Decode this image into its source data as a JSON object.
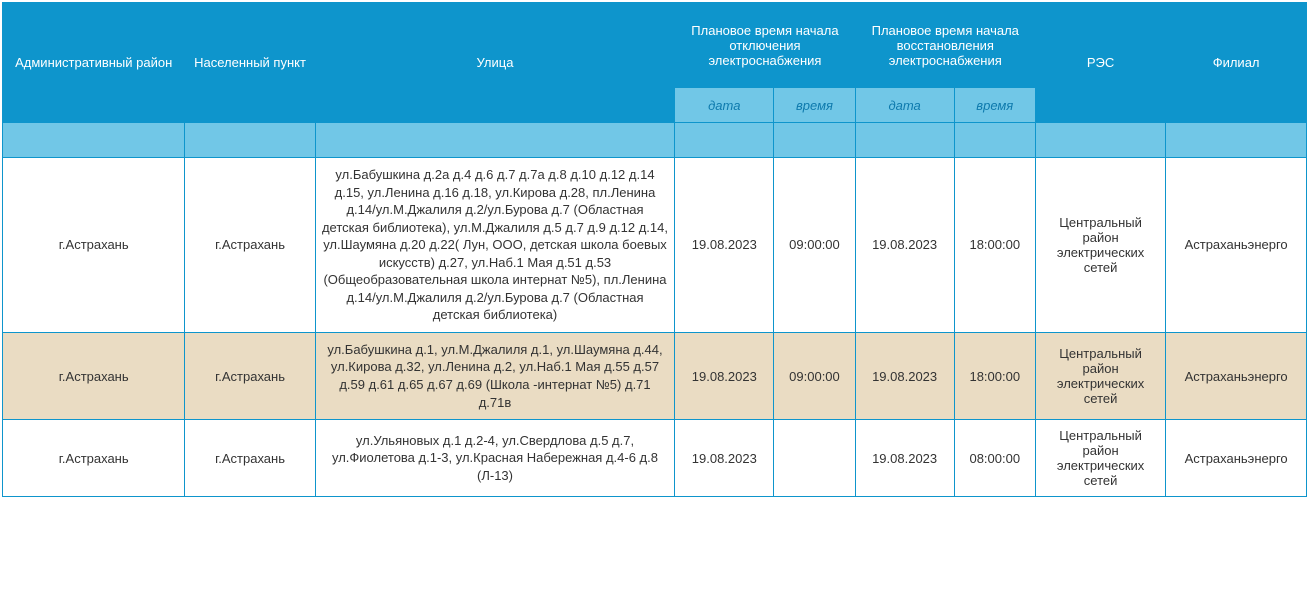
{
  "headers": {
    "district": "Административный район",
    "settlement": "Населенный пункт",
    "street": "Улица",
    "outage_start": "Плановое время начала отключения электроснабжения",
    "outage_end": "Плановое время начала восстановления электроснабжения",
    "res": "РЭС",
    "branch": "Филиал"
  },
  "subheaders": {
    "date": "дата",
    "time": "время"
  },
  "rows": [
    {
      "district": "г.Астрахань",
      "settlement": "г.Астрахань",
      "street": "ул.Бабушкина д.2а д.4 д.6 д.7 д.7а д.8 д.10 д.12 д.14 д.15, ул.Ленина д.16 д.18, ул.Кирова д.28, пл.Ленина д.14/ул.М.Джалиля д.2/ул.Бурова д.7 (Областная детская библиотека), ул.М.Джалиля д.5 д.7 д.9 д.12 д.14, ул.Шаумяна д.20 д.22( Лун, ООО, детская школа боевых искусств) д.27, ул.Наб.1 Мая д.51 д.53 (Общеобразовательная школа интернат №5), пл.Ленина д.14/ул.М.Джалиля д.2/ул.Бурова д.7 (Областная детская библиотека)",
      "start_date": "19.08.2023",
      "start_time": "09:00:00",
      "end_date": "19.08.2023",
      "end_time": "18:00:00",
      "res": "Центральный район электрических сетей",
      "branch": "Астраханьэнерго"
    },
    {
      "district": "г.Астрахань",
      "settlement": "г.Астрахань",
      "street": "ул.Бабушкина д.1, ул.М.Джалиля д.1, ул.Шаумяна д.44, ул.Кирова д.32, ул.Ленина д.2, ул.Наб.1 Мая д.55 д.57 д.59 д.61 д.65 д.67 д.69 (Школа -интернат №5) д.71 д.71в",
      "start_date": "19.08.2023",
      "start_time": "09:00:00",
      "end_date": "19.08.2023",
      "end_time": "18:00:00",
      "res": "Центральный район электрических сетей",
      "branch": "Астраханьэнерго"
    },
    {
      "district": "г.Астрахань",
      "settlement": "г.Астрахань",
      "street": "ул.Ульяновых д.1 д.2-4, ул.Свердлова д.5 д.7, ул.Фиолетова д.1-3, ул.Красная Набережная д.4-6 д.8 (Л-13)",
      "start_date": "19.08.2023",
      "start_time": "",
      "end_date": "19.08.2023",
      "end_time": "08:00:00",
      "res": "Центральный район электрических сетей",
      "branch": "Астраханьэнерго"
    }
  ],
  "colors": {
    "header_bg": "#0e95cc",
    "header_text": "#ffffff",
    "subheader_bg": "#71c7e7",
    "subheader_text": "#0e7aad",
    "border": "#0e95cc",
    "row_bg": "#ffffff",
    "row_alt_bg": "#eadcc3",
    "text": "#333333"
  }
}
